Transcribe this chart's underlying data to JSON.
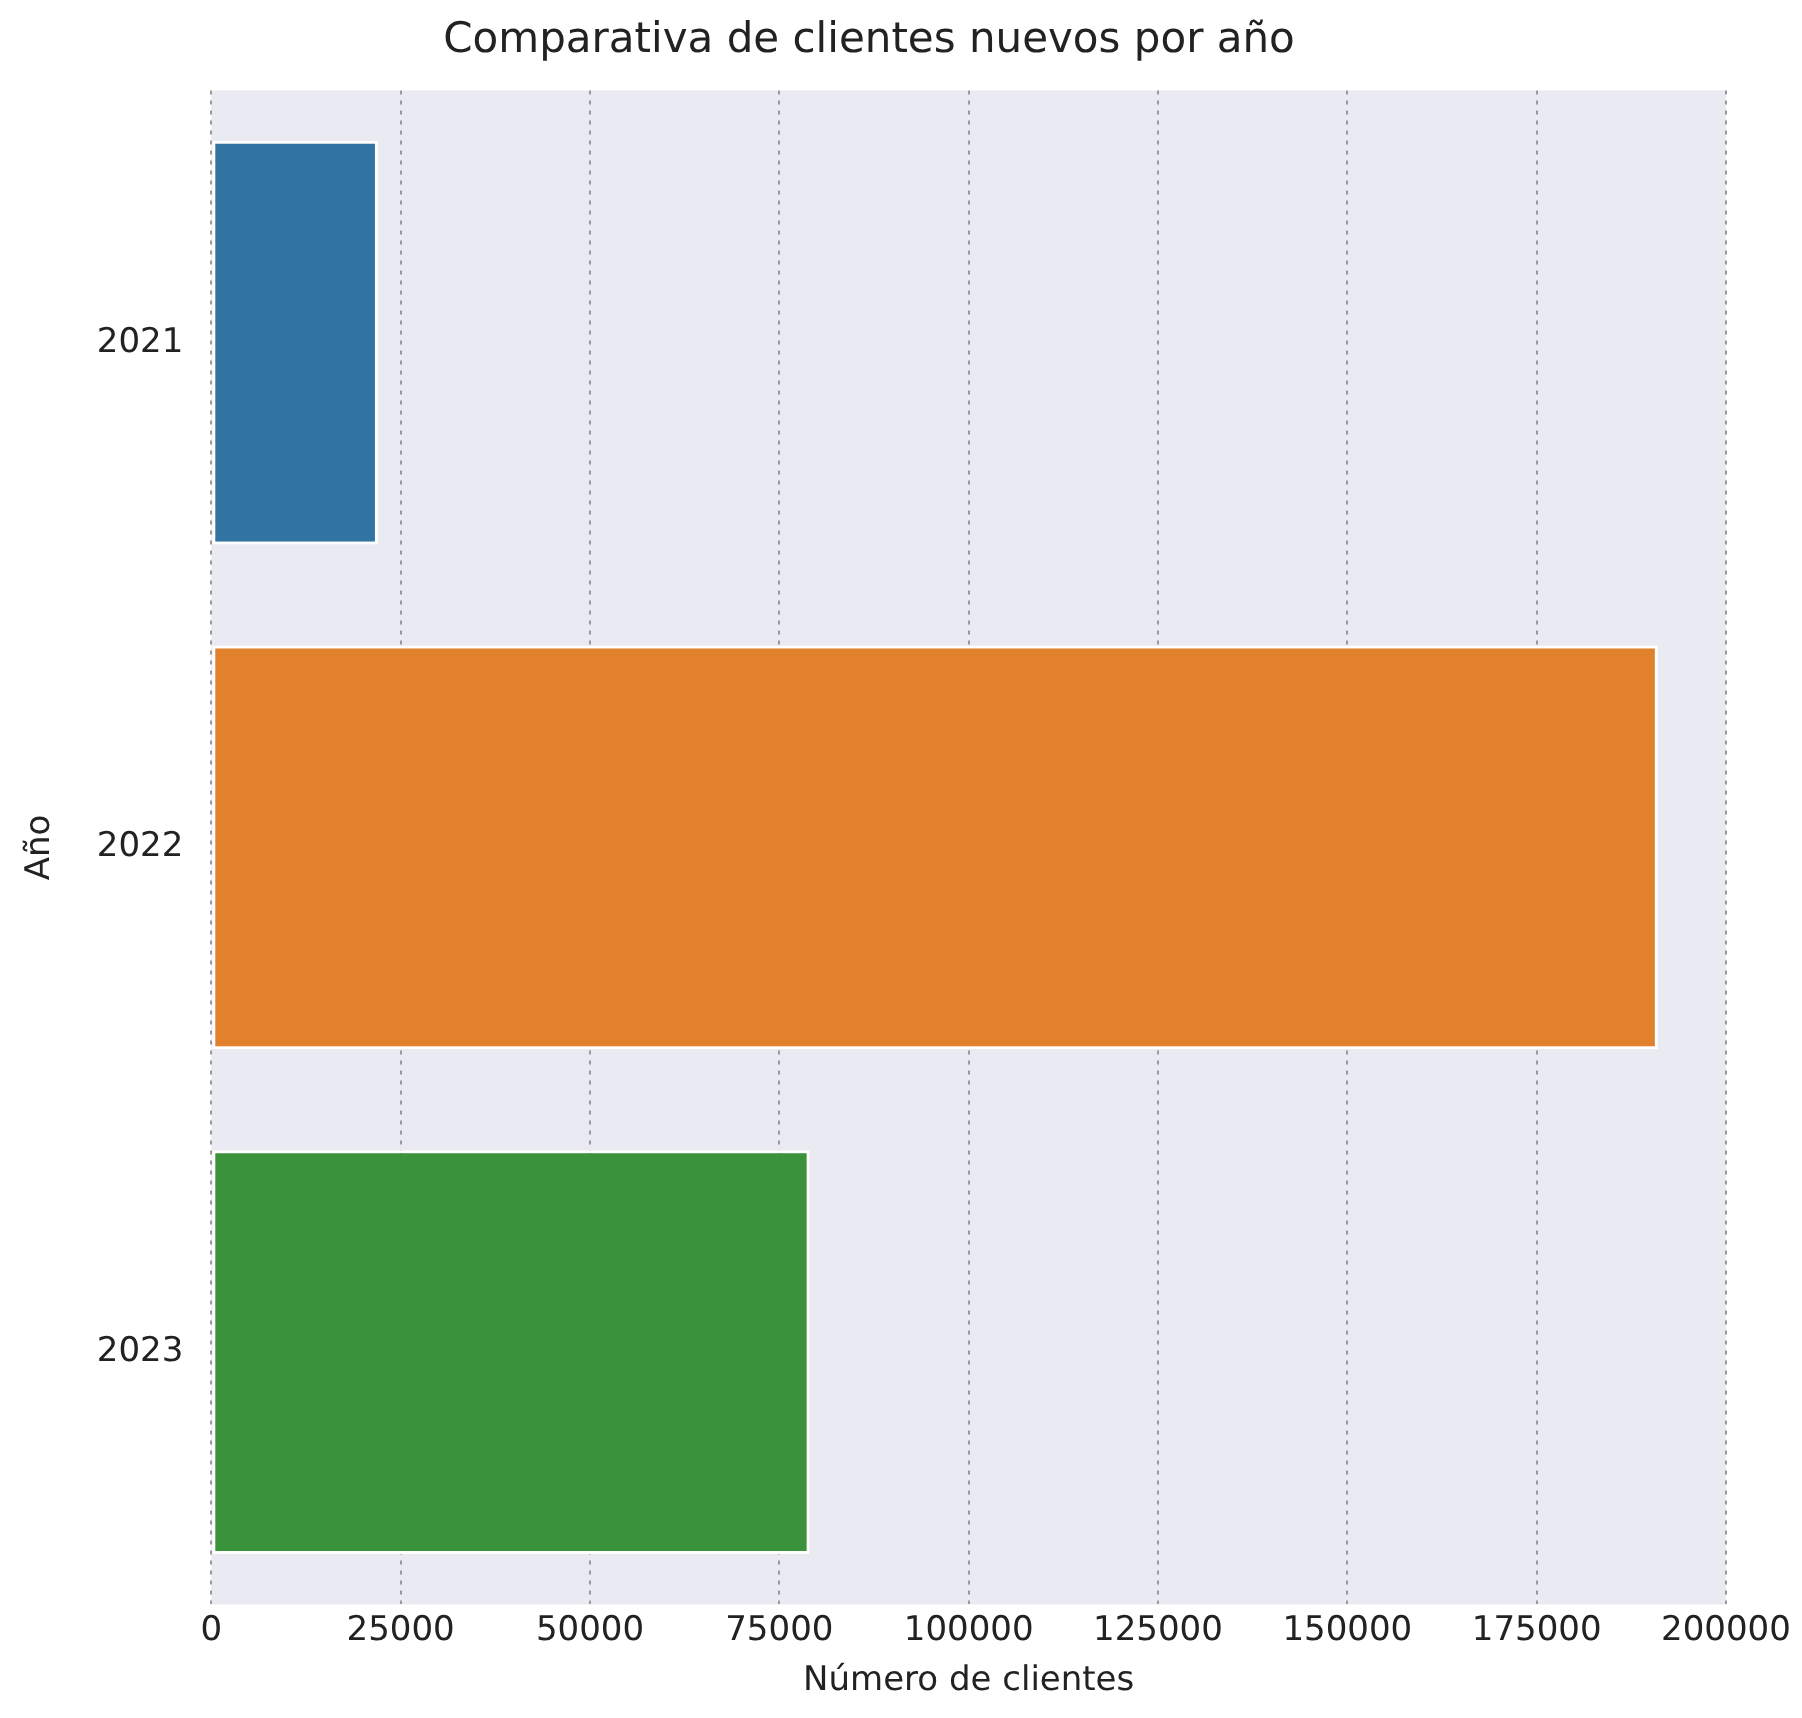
{
  "chart_data": {
    "type": "bar",
    "orientation": "horizontal",
    "title": "Comparativa de clientes nuevos por año",
    "xlabel": "Número de clientes",
    "ylabel": "Año",
    "categories": [
      "2021",
      "2022",
      "2023"
    ],
    "values": [
      22000,
      191000,
      79000
    ],
    "colors": [
      "#3274a1",
      "#e1812c",
      "#3a923a"
    ],
    "xlim": [
      0,
      200000
    ],
    "xticks": [
      0,
      25000,
      50000,
      75000,
      100000,
      125000,
      150000,
      175000,
      200000
    ],
    "grid": "x",
    "legend": false
  }
}
